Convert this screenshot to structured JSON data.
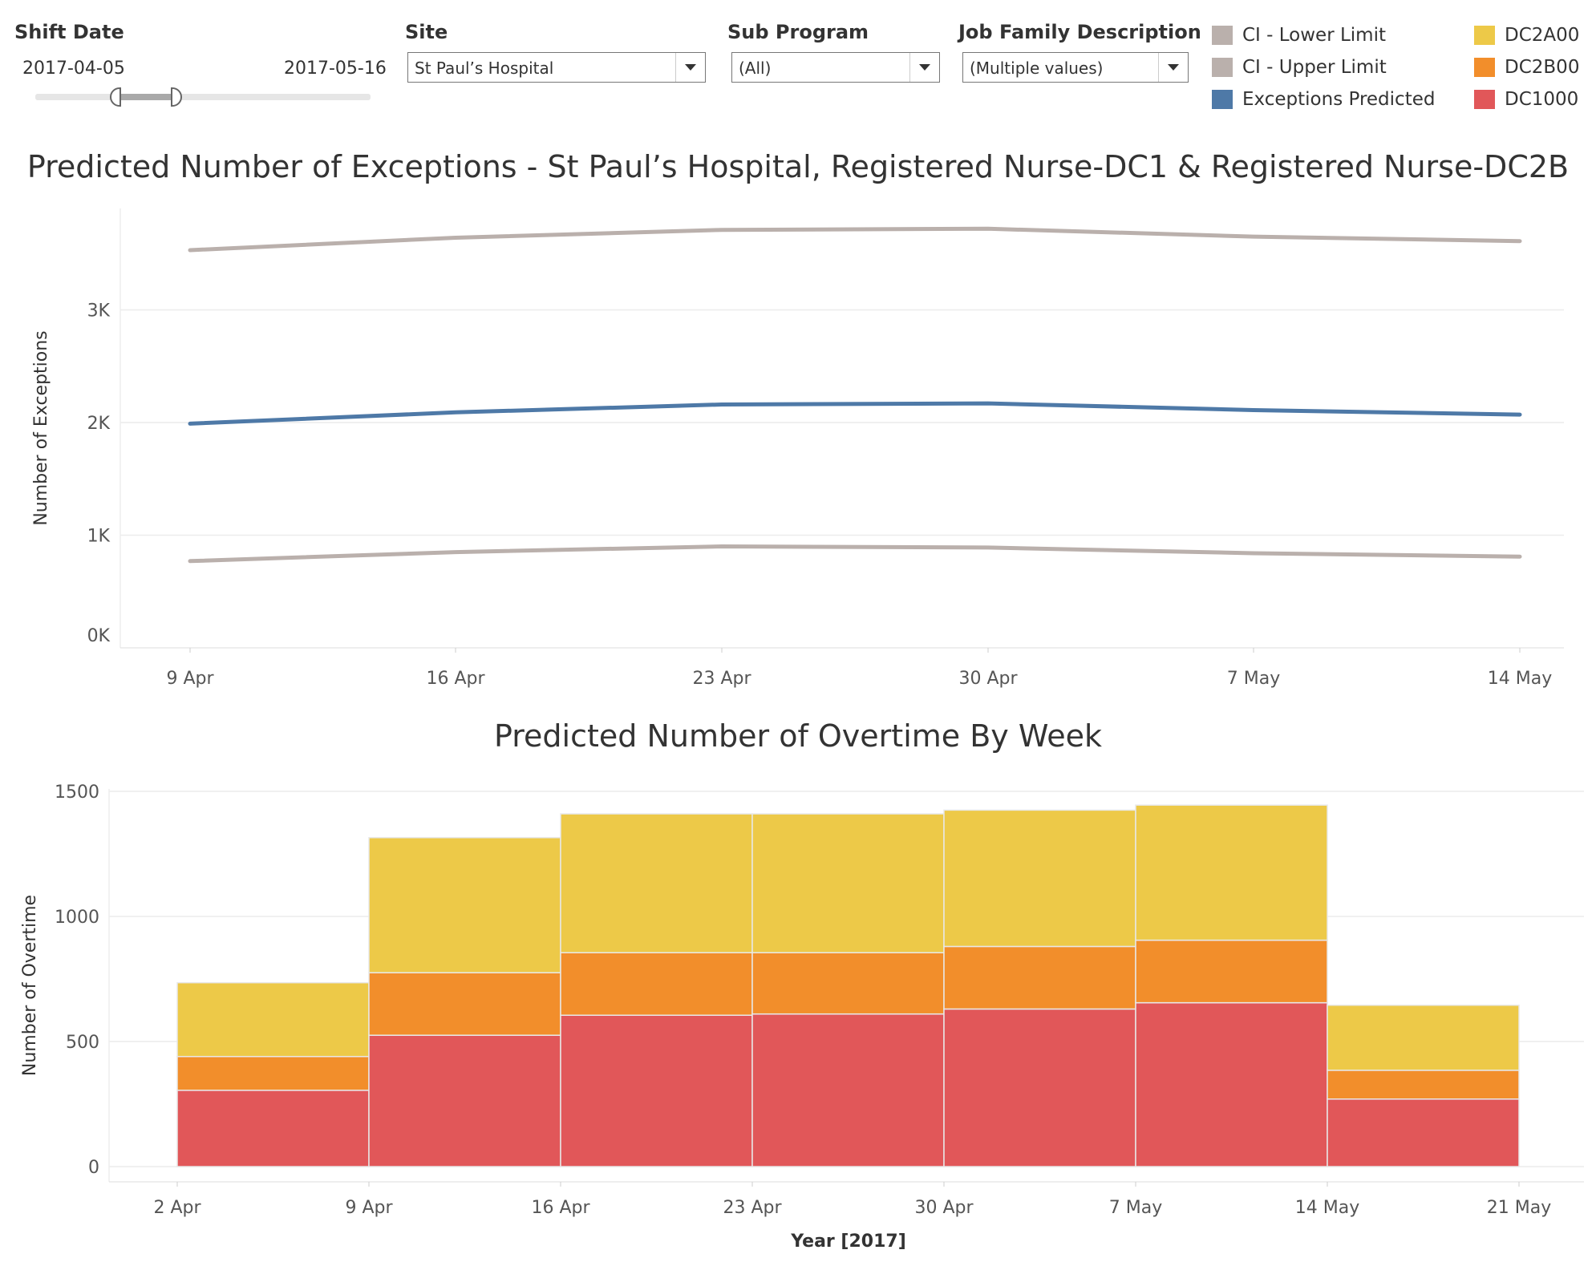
{
  "filters": {
    "shift_date": {
      "label": "Shift Date",
      "start": "2017-04-05",
      "end": "2017-05-16",
      "range_start_fraction": 0.25,
      "range_end_fraction": 0.41
    },
    "site": {
      "label": "Site",
      "value": "St Paul’s Hospital"
    },
    "sub_program": {
      "label": "Sub Program",
      "value": "(All)"
    },
    "job_family": {
      "label": "Job Family Description",
      "value": "(Multiple values)"
    }
  },
  "legend": {
    "items": [
      {
        "label": "CI - Lower Limit",
        "color": "#bab0ac"
      },
      {
        "label": "CI - Upper Limit",
        "color": "#bab0ac"
      },
      {
        "label": "Exceptions Predicted",
        "color": "#4e79a7"
      },
      {
        "label": "DC2A00",
        "color": "#edc948"
      },
      {
        "label": "DC2B00",
        "color": "#f28e2b"
      },
      {
        "label": "DC1000",
        "color": "#e15759"
      }
    ]
  },
  "chart_data": [
    {
      "type": "line",
      "title": "Predicted Number of Exceptions - St Paul’s Hospital, Registered Nurse-DC1 & Registered Nurse-DC2B",
      "ylabel": "Number of Exceptions",
      "xlabel": "",
      "x": [
        "2017-04-09",
        "2017-04-16",
        "2017-04-23",
        "2017-04-30",
        "2017-05-07",
        "2017-05-14"
      ],
      "x_tick_labels": [
        "9 Apr",
        "16 Apr",
        "23 Apr",
        "30 Apr",
        "7 May",
        "14 May"
      ],
      "y_tick_labels": [
        "0K",
        "1K",
        "2K",
        "3K"
      ],
      "y_ticks": [
        0,
        1000,
        2000,
        3000
      ],
      "ylim": [
        0,
        3900
      ],
      "grid": true,
      "series": [
        {
          "name": "CI - Upper Limit",
          "color": "#bab0ac",
          "values": [
            3530,
            3640,
            3710,
            3720,
            3650,
            3610
          ]
        },
        {
          "name": "Exceptions Predicted",
          "color": "#4e79a7",
          "values": [
            1990,
            2090,
            2160,
            2170,
            2110,
            2070
          ]
        },
        {
          "name": "CI - Lower Limit",
          "color": "#bab0ac",
          "values": [
            770,
            850,
            900,
            890,
            840,
            810
          ]
        }
      ]
    },
    {
      "type": "bar",
      "stacked": true,
      "title": "Predicted Number of Overtime By Week",
      "ylabel": "Number of Overtime",
      "xlabel": "Year [2017]",
      "categories": [
        "2017-04-02",
        "2017-04-09",
        "2017-04-16",
        "2017-04-23",
        "2017-04-30",
        "2017-05-07",
        "2017-05-14"
      ],
      "x_tick_labels": [
        "2 Apr",
        "9 Apr",
        "16 Apr",
        "23 Apr",
        "30 Apr",
        "7 May",
        "14 May",
        "21 May"
      ],
      "y_tick_labels": [
        "0",
        "500",
        "1000",
        "1500"
      ],
      "y_ticks": [
        0,
        500,
        1000,
        1500
      ],
      "ylim": [
        0,
        1500
      ],
      "grid": true,
      "series": [
        {
          "name": "DC1000",
          "color": "#e15759",
          "values": [
            305,
            525,
            605,
            610,
            630,
            655,
            270
          ]
        },
        {
          "name": "DC2B00",
          "color": "#f28e2b",
          "values": [
            135,
            250,
            250,
            245,
            250,
            250,
            115
          ]
        },
        {
          "name": "DC2A00",
          "color": "#edc948",
          "values": [
            295,
            540,
            555,
            555,
            545,
            540,
            260
          ]
        }
      ]
    }
  ]
}
